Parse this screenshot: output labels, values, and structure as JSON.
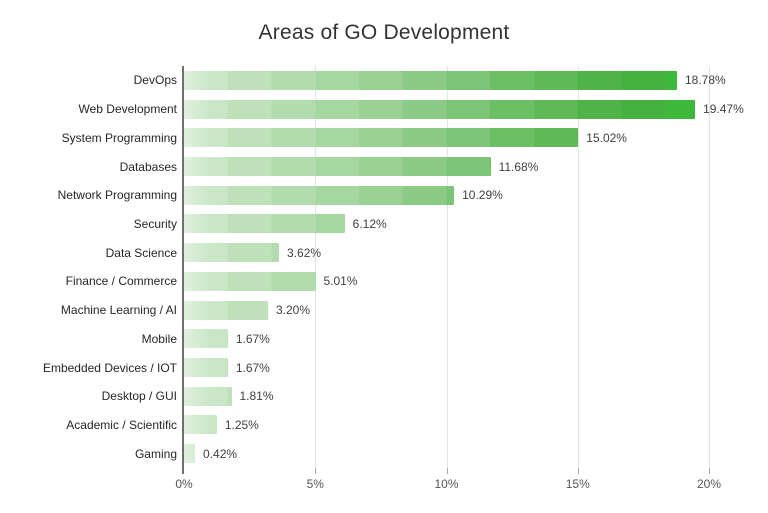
{
  "title": "Areas of GO Development",
  "chart_data": {
    "type": "bar",
    "orientation": "horizontal",
    "title": "Areas of GO Development",
    "categories": [
      "DevOps",
      "Web Development",
      "System Programming",
      "Databases",
      "Network Programming",
      "Security",
      "Data Science",
      "Finance / Commerce",
      "Machine Learning / AI",
      "Mobile",
      "Embedded Devices / IOT",
      "Desktop / GUI",
      "Academic / Scientific",
      "Gaming"
    ],
    "values": [
      18.78,
      19.47,
      15.02,
      11.68,
      10.29,
      6.12,
      3.62,
      5.01,
      3.2,
      1.67,
      1.67,
      1.81,
      1.25,
      0.42
    ],
    "value_labels": [
      "18.78%",
      "19.47%",
      "15.02%",
      "11.68%",
      "10.29%",
      "6.12%",
      "3.62%",
      "5.01%",
      "3.20%",
      "1.67%",
      "1.67%",
      "1.81%",
      "1.25%",
      "0.42%"
    ],
    "xlabel": "",
    "ylabel": "",
    "xlim": [
      0,
      21
    ],
    "xticks": [
      "0%",
      "5%",
      "10%",
      "15%",
      "20%"
    ],
    "xtick_values": [
      0,
      5,
      10,
      15,
      20
    ],
    "grid": "vertical-gridlines-on",
    "legend": "none",
    "colors": {
      "bar_gradient_start": "#c9e6c6",
      "bar_gradient_end": "#3eb83a",
      "axis_line": "#6f6f6f",
      "gridline": "#e4e4e4",
      "title_text": "#333333",
      "label_text": "#262626",
      "value_text": "#404040",
      "tick_text": "#555555",
      "background": "#ffffff"
    }
  }
}
